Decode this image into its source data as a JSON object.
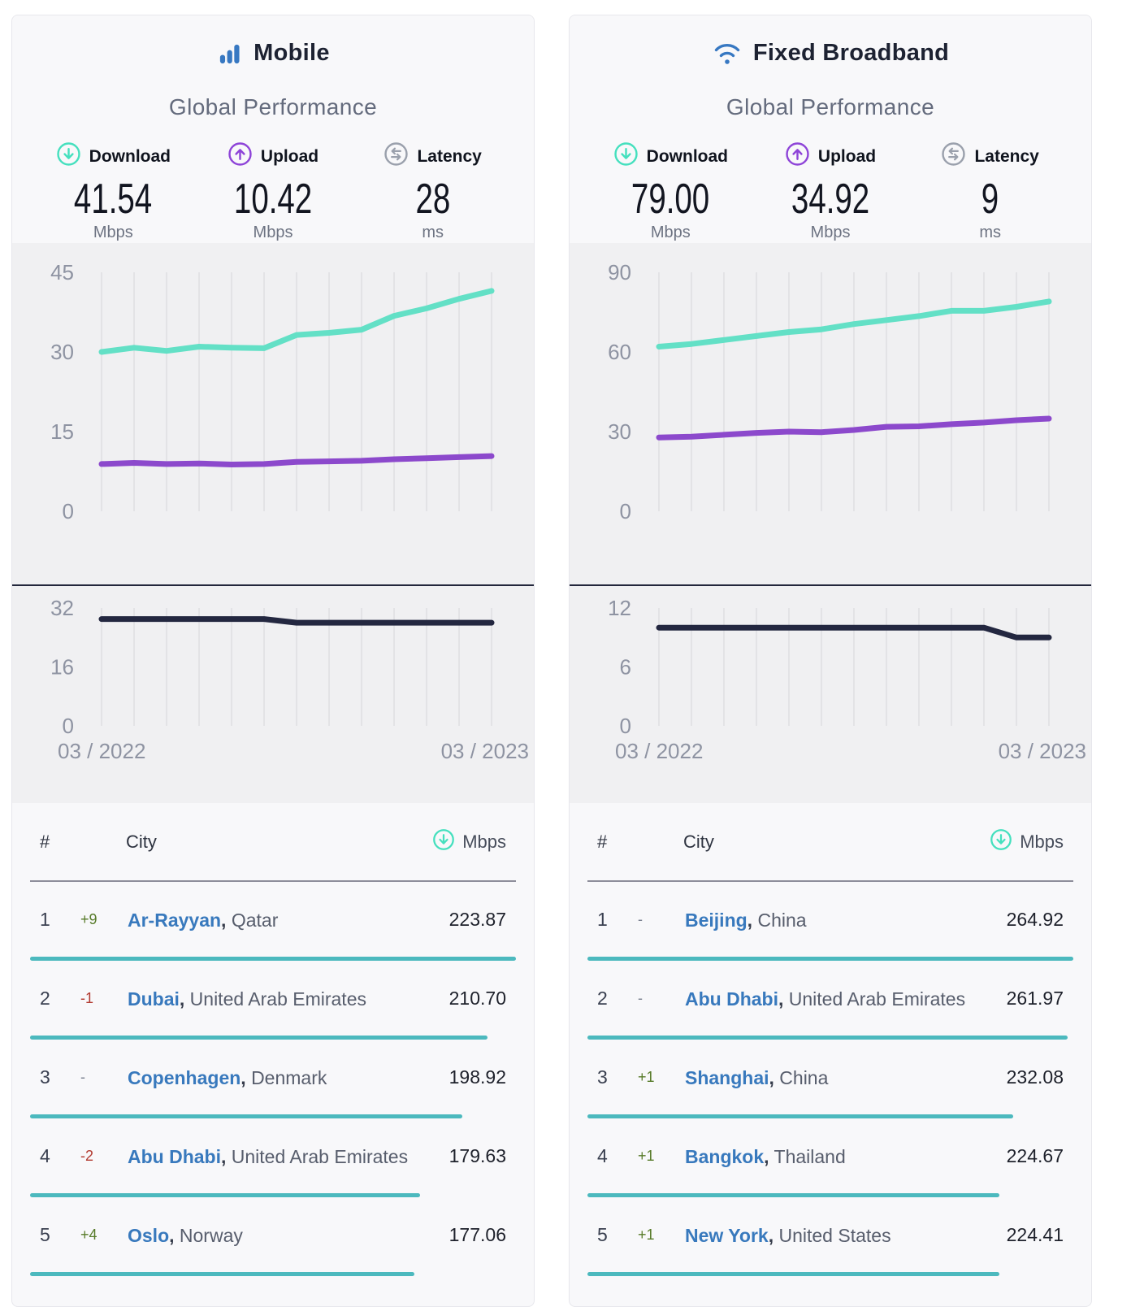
{
  "colors": {
    "brand_blue": "#3778c2",
    "teal": "#63e0c6",
    "purple": "#8c49cc",
    "navy_line": "#232740",
    "link_blue": "#3879bd",
    "rank_up_green": "#567a28",
    "rank_down_red": "#b23a30",
    "row_bar_teal": "#4cb9be"
  },
  "cards": [
    {
      "id": "mobile",
      "title": "Mobile",
      "icon": "mobile-bars-icon",
      "subtitle": "Global Performance",
      "stats": {
        "download": {
          "label": "Download",
          "value": "41.54",
          "unit": "Mbps"
        },
        "upload": {
          "label": "Upload",
          "value": "10.42",
          "unit": "Mbps"
        },
        "latency": {
          "label": "Latency",
          "value": "28",
          "unit": "ms"
        }
      },
      "chart_data": [
        {
          "type": "line",
          "title": "Mobile download / upload speed over time",
          "x": [
            "03/2022",
            "04/2022",
            "05/2022",
            "06/2022",
            "07/2022",
            "08/2022",
            "09/2022",
            "10/2022",
            "11/2022",
            "12/2022",
            "01/2023",
            "02/2023",
            "03/2023"
          ],
          "ylim": [
            0,
            45
          ],
          "yticks": [
            45,
            30,
            15,
            0
          ],
          "grid": "vertical",
          "series": [
            {
              "name": "Download",
              "color": "#63e0c6",
              "values": [
                30.0,
                30.8,
                30.2,
                31.0,
                30.8,
                30.7,
                33.2,
                33.6,
                34.2,
                36.8,
                38.2,
                40.0,
                41.5
              ]
            },
            {
              "name": "Upload",
              "color": "#8c49cc",
              "values": [
                8.9,
                9.1,
                8.9,
                9.0,
                8.8,
                8.9,
                9.3,
                9.4,
                9.5,
                9.8,
                10.0,
                10.2,
                10.4
              ]
            }
          ]
        },
        {
          "type": "line",
          "title": "Mobile latency over time",
          "x_labels": [
            "03 / 2022",
            "03 / 2023"
          ],
          "ylim": [
            0,
            32
          ],
          "yticks": [
            32,
            16,
            0
          ],
          "grid": "vertical",
          "series": [
            {
              "name": "Latency",
              "color": "#232740",
              "values": [
                29,
                29,
                29,
                29,
                29,
                29,
                28,
                28,
                28,
                28,
                28,
                28,
                28
              ]
            }
          ]
        }
      ],
      "table": {
        "headers": {
          "rank": "#",
          "city": "City",
          "metric": "Mbps"
        },
        "rows": [
          {
            "rank": "1",
            "change": "+9",
            "city": "Ar-Rayyan",
            "country": "Qatar",
            "value": "223.87"
          },
          {
            "rank": "2",
            "change": "-1",
            "city": "Dubai",
            "country": "United Arab Emirates",
            "value": "210.70"
          },
          {
            "rank": "3",
            "change": "-",
            "city": "Copenhagen",
            "country": "Denmark",
            "value": "198.92"
          },
          {
            "rank": "4",
            "change": "-2",
            "city": "Abu Dhabi",
            "country": "United Arab Emirates",
            "value": "179.63"
          },
          {
            "rank": "5",
            "change": "+4",
            "city": "Oslo",
            "country": "Norway",
            "value": "177.06"
          }
        ]
      }
    },
    {
      "id": "fixed",
      "title": "Fixed Broadband",
      "icon": "wifi-icon",
      "subtitle": "Global Performance",
      "stats": {
        "download": {
          "label": "Download",
          "value": "79.00",
          "unit": "Mbps"
        },
        "upload": {
          "label": "Upload",
          "value": "34.92",
          "unit": "Mbps"
        },
        "latency": {
          "label": "Latency",
          "value": "9",
          "unit": "ms"
        }
      },
      "chart_data": [
        {
          "type": "line",
          "title": "Fixed broadband download / upload speed over time",
          "x": [
            "03/2022",
            "04/2022",
            "05/2022",
            "06/2022",
            "07/2022",
            "08/2022",
            "09/2022",
            "10/2022",
            "11/2022",
            "12/2022",
            "01/2023",
            "02/2023",
            "03/2023"
          ],
          "ylim": [
            0,
            90
          ],
          "yticks": [
            90,
            60,
            30,
            0
          ],
          "grid": "vertical",
          "series": [
            {
              "name": "Download",
              "color": "#63e0c6",
              "values": [
                62,
                63,
                64.5,
                66,
                67.5,
                68.5,
                70.5,
                72,
                73.5,
                75.5,
                75.5,
                77,
                79
              ]
            },
            {
              "name": "Upload",
              "color": "#8c49cc",
              "values": [
                27.8,
                28.1,
                28.8,
                29.5,
                30.0,
                29.8,
                30.6,
                31.8,
                32.0,
                32.8,
                33.4,
                34.3,
                34.9
              ]
            }
          ]
        },
        {
          "type": "line",
          "title": "Fixed broadband latency over time",
          "x_labels": [
            "03 / 2022",
            "03 / 2023"
          ],
          "ylim": [
            0,
            12
          ],
          "yticks": [
            12,
            6,
            0
          ],
          "grid": "vertical",
          "series": [
            {
              "name": "Latency",
              "color": "#232740",
              "values": [
                10,
                10,
                10,
                10,
                10,
                10,
                10,
                10,
                10,
                10,
                10,
                9,
                9
              ]
            }
          ]
        }
      ],
      "table": {
        "headers": {
          "rank": "#",
          "city": "City",
          "metric": "Mbps"
        },
        "rows": [
          {
            "rank": "1",
            "change": "-",
            "city": "Beijing",
            "country": "China",
            "value": "264.92"
          },
          {
            "rank": "2",
            "change": "-",
            "city": "Abu Dhabi",
            "country": "United Arab Emirates",
            "value": "261.97"
          },
          {
            "rank": "3",
            "change": "+1",
            "city": "Shanghai",
            "country": "China",
            "value": "232.08"
          },
          {
            "rank": "4",
            "change": "+1",
            "city": "Bangkok",
            "country": "Thailand",
            "value": "224.67"
          },
          {
            "rank": "5",
            "change": "+1",
            "city": "New York",
            "country": "United States",
            "value": "224.41"
          }
        ]
      }
    }
  ]
}
